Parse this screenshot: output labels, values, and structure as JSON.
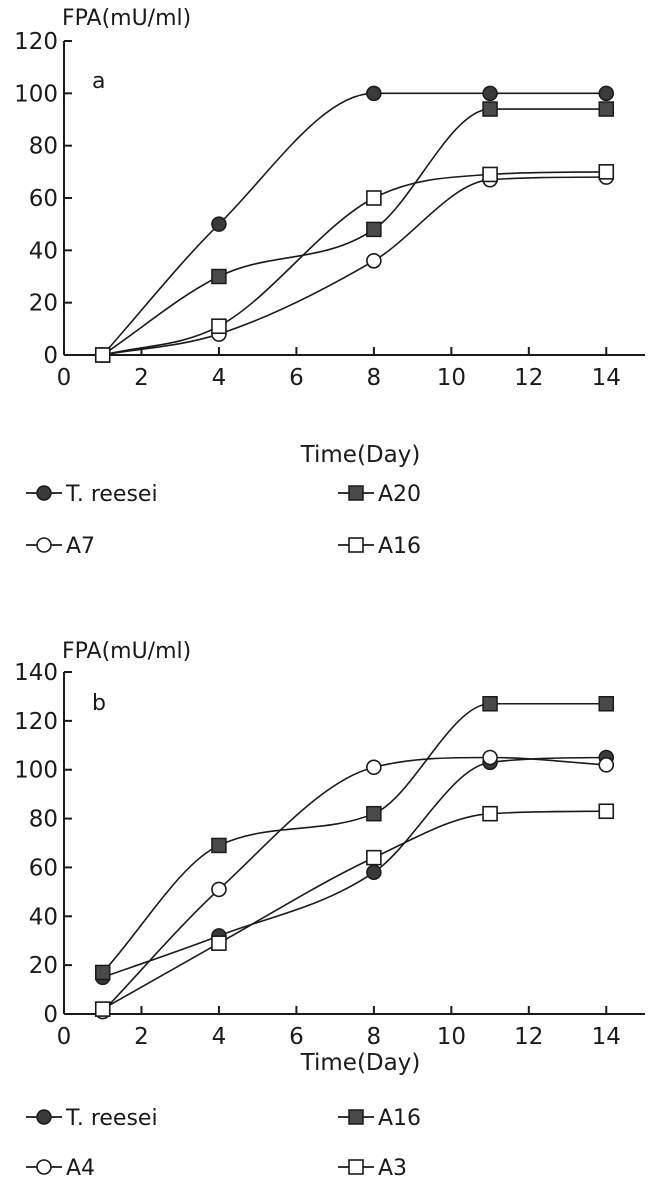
{
  "chart_data": [
    {
      "type": "line",
      "panel_label": "a",
      "ylabel": "FPA(mU/ml)",
      "xlabel": "Time(Day)",
      "xlim": [
        0,
        15
      ],
      "ylim": [
        0,
        120
      ],
      "xticks": [
        0,
        2,
        4,
        6,
        8,
        10,
        12,
        14
      ],
      "yticks": [
        0,
        20,
        40,
        60,
        80,
        100,
        120
      ],
      "grid": false,
      "legend_position": "below",
      "series": [
        {
          "name": "T. reesei",
          "marker": "filled-circle",
          "points": [
            [
              1,
              0
            ],
            [
              4,
              50
            ],
            [
              8,
              100
            ],
            [
              11,
              100
            ],
            [
              14,
              100
            ]
          ]
        },
        {
          "name": "A20",
          "marker": "filled-square",
          "points": [
            [
              1,
              0
            ],
            [
              4,
              30
            ],
            [
              8,
              48
            ],
            [
              11,
              94
            ],
            [
              14,
              94
            ]
          ]
        },
        {
          "name": "A7",
          "marker": "open-circle",
          "points": [
            [
              1,
              0
            ],
            [
              4,
              8
            ],
            [
              8,
              36
            ],
            [
              11,
              67
            ],
            [
              14,
              68
            ]
          ]
        },
        {
          "name": "A16",
          "marker": "open-square",
          "points": [
            [
              1,
              0
            ],
            [
              4,
              11
            ],
            [
              8,
              60
            ],
            [
              11,
              69
            ],
            [
              14,
              70
            ]
          ]
        }
      ]
    },
    {
      "type": "line",
      "panel_label": "b",
      "ylabel": "FPA(mU/ml)",
      "xlabel": "Time(Day)",
      "xlim": [
        0,
        15
      ],
      "ylim": [
        0,
        140
      ],
      "xticks": [
        0,
        2,
        4,
        6,
        8,
        10,
        12,
        14
      ],
      "yticks": [
        0,
        20,
        40,
        60,
        80,
        100,
        120,
        140
      ],
      "grid": false,
      "legend_position": "below",
      "series": [
        {
          "name": "T. reesei",
          "marker": "filled-circle",
          "points": [
            [
              1,
              15
            ],
            [
              4,
              32
            ],
            [
              8,
              58
            ],
            [
              11,
              103
            ],
            [
              14,
              105
            ]
          ]
        },
        {
          "name": "A16",
          "marker": "filled-square",
          "points": [
            [
              1,
              17
            ],
            [
              4,
              69
            ],
            [
              8,
              82
            ],
            [
              11,
              127
            ],
            [
              14,
              127
            ]
          ]
        },
        {
          "name": "A4",
          "marker": "open-circle",
          "points": [
            [
              1,
              1
            ],
            [
              4,
              51
            ],
            [
              8,
              101
            ],
            [
              11,
              105
            ],
            [
              14,
              102
            ]
          ]
        },
        {
          "name": "A3",
          "marker": "open-square",
          "points": [
            [
              1,
              2
            ],
            [
              4,
              29
            ],
            [
              8,
              64
            ],
            [
              11,
              82
            ],
            [
              14,
              83
            ]
          ]
        }
      ]
    }
  ]
}
